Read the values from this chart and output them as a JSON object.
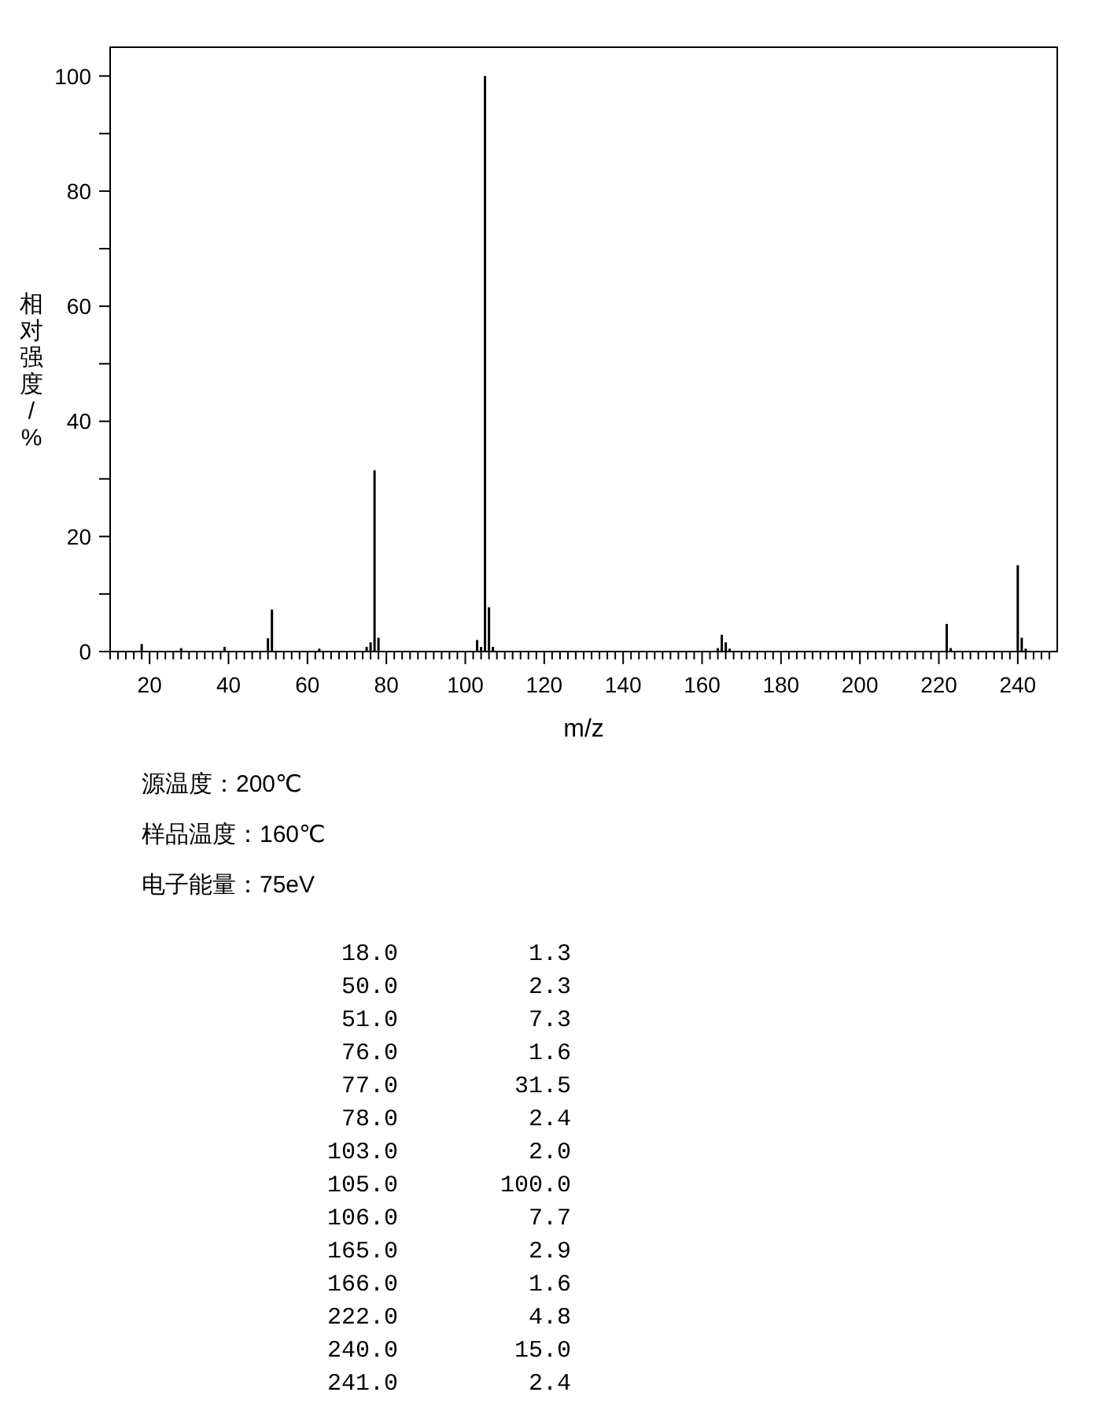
{
  "chart_data": {
    "type": "bar",
    "xlabel": "m/z",
    "ylabel": "相对强度/%",
    "xlim": [
      10,
      250
    ],
    "ylim": [
      0,
      105
    ],
    "xticks": [
      {
        "value": 10,
        "label": null
      },
      {
        "value": 12,
        "label": null
      },
      {
        "value": 14,
        "label": null
      },
      {
        "value": 16,
        "label": null
      },
      {
        "value": 18,
        "label": null
      },
      20,
      {
        "value": 22,
        "label": null
      },
      {
        "value": 24,
        "label": null
      },
      {
        "value": 26,
        "label": null
      },
      {
        "value": 28,
        "label": null
      },
      {
        "value": 30,
        "label": null
      },
      {
        "value": 32,
        "label": null
      },
      {
        "value": 34,
        "label": null
      },
      {
        "value": 36,
        "label": null
      },
      {
        "value": 38,
        "label": null
      },
      40,
      {
        "value": 42,
        "label": null
      },
      {
        "value": 44,
        "label": null
      },
      {
        "value": 46,
        "label": null
      },
      {
        "value": 48,
        "label": null
      },
      {
        "value": 50,
        "label": null
      },
      {
        "value": 52,
        "label": null
      },
      {
        "value": 54,
        "label": null
      },
      {
        "value": 56,
        "label": null
      },
      {
        "value": 58,
        "label": null
      },
      60,
      {
        "value": 62,
        "label": null
      },
      {
        "value": 64,
        "label": null
      },
      {
        "value": 66,
        "label": null
      },
      {
        "value": 68,
        "label": null
      },
      {
        "value": 70,
        "label": null
      },
      {
        "value": 72,
        "label": null
      },
      {
        "value": 74,
        "label": null
      },
      {
        "value": 76,
        "label": null
      },
      {
        "value": 78,
        "label": null
      },
      80,
      {
        "value": 82,
        "label": null
      },
      {
        "value": 84,
        "label": null
      },
      {
        "value": 86,
        "label": null
      },
      {
        "value": 88,
        "label": null
      },
      {
        "value": 90,
        "label": null
      },
      {
        "value": 92,
        "label": null
      },
      {
        "value": 94,
        "label": null
      },
      {
        "value": 96,
        "label": null
      },
      {
        "value": 98,
        "label": null
      },
      100,
      {
        "value": 102,
        "label": null
      },
      {
        "value": 104,
        "label": null
      },
      {
        "value": 106,
        "label": null
      },
      {
        "value": 108,
        "label": null
      },
      {
        "value": 110,
        "label": null
      },
      {
        "value": 112,
        "label": null
      },
      {
        "value": 114,
        "label": null
      },
      {
        "value": 116,
        "label": null
      },
      {
        "value": 118,
        "label": null
      },
      120,
      {
        "value": 122,
        "label": null
      },
      {
        "value": 124,
        "label": null
      },
      {
        "value": 126,
        "label": null
      },
      {
        "value": 128,
        "label": null
      },
      {
        "value": 130,
        "label": null
      },
      {
        "value": 132,
        "label": null
      },
      {
        "value": 134,
        "label": null
      },
      {
        "value": 136,
        "label": null
      },
      {
        "value": 138,
        "label": null
      },
      140,
      {
        "value": 142,
        "label": null
      },
      {
        "value": 144,
        "label": null
      },
      {
        "value": 146,
        "label": null
      },
      {
        "value": 148,
        "label": null
      },
      {
        "value": 150,
        "label": null
      },
      {
        "value": 152,
        "label": null
      },
      {
        "value": 154,
        "label": null
      },
      {
        "value": 156,
        "label": null
      },
      {
        "value": 158,
        "label": null
      },
      160,
      {
        "value": 162,
        "label": null
      },
      {
        "value": 164,
        "label": null
      },
      {
        "value": 166,
        "label": null
      },
      {
        "value": 168,
        "label": null
      },
      {
        "value": 170,
        "label": null
      },
      {
        "value": 172,
        "label": null
      },
      {
        "value": 174,
        "label": null
      },
      {
        "value": 176,
        "label": null
      },
      {
        "value": 178,
        "label": null
      },
      180,
      {
        "value": 182,
        "label": null
      },
      {
        "value": 184,
        "label": null
      },
      {
        "value": 186,
        "label": null
      },
      {
        "value": 188,
        "label": null
      },
      {
        "value": 190,
        "label": null
      },
      {
        "value": 192,
        "label": null
      },
      {
        "value": 194,
        "label": null
      },
      {
        "value": 196,
        "label": null
      },
      {
        "value": 198,
        "label": null
      },
      200,
      {
        "value": 202,
        "label": null
      },
      {
        "value": 204,
        "label": null
      },
      {
        "value": 206,
        "label": null
      },
      {
        "value": 208,
        "label": null
      },
      {
        "value": 210,
        "label": null
      },
      {
        "value": 212,
        "label": null
      },
      {
        "value": 214,
        "label": null
      },
      {
        "value": 216,
        "label": null
      },
      {
        "value": 218,
        "label": null
      },
      220,
      {
        "value": 222,
        "label": null
      },
      {
        "value": 224,
        "label": null
      },
      {
        "value": 226,
        "label": null
      },
      {
        "value": 228,
        "label": null
      },
      {
        "value": 230,
        "label": null
      },
      {
        "value": 232,
        "label": null
      },
      {
        "value": 234,
        "label": null
      },
      {
        "value": 236,
        "label": null
      },
      {
        "value": 238,
        "label": null
      },
      240,
      {
        "value": 242,
        "label": null
      },
      {
        "value": 244,
        "label": null
      },
      {
        "value": 246,
        "label": null
      },
      {
        "value": 248,
        "label": null
      }
    ],
    "yticks": [
      0,
      {
        "value": 10,
        "label": null
      },
      20,
      {
        "value": 30,
        "label": null
      },
      40,
      {
        "value": 50,
        "label": null
      },
      60,
      {
        "value": 70,
        "label": null
      },
      80,
      {
        "value": 90,
        "label": null
      },
      100
    ],
    "series": [
      {
        "color": "#000000",
        "x": [
          18,
          28,
          39,
          50,
          51,
          63,
          75,
          76,
          77,
          78,
          103,
          104,
          105,
          106,
          107,
          164,
          165,
          166,
          167,
          222,
          223,
          240,
          241,
          242
        ],
        "values": [
          1.3,
          0.6,
          0.8,
          2.3,
          7.3,
          0.5,
          0.8,
          1.6,
          31.5,
          2.4,
          2.0,
          0.8,
          100.0,
          7.7,
          0.8,
          0.6,
          2.9,
          1.6,
          0.5,
          4.8,
          0.6,
          15.0,
          2.4,
          0.5
        ]
      }
    ],
    "annotations": [
      "源温度：200℃",
      "样品温度：160℃",
      "电子能量：75eV",
      "18.0",
      "1.3",
      "50.0",
      "2.3",
      "51.0",
      "7.3",
      "76.0",
      "1.6",
      "77.0",
      "31.5",
      "78.0",
      "2.4",
      "103.0",
      "2.0",
      "105.0",
      "100.0",
      "106.0",
      "7.7",
      "165.0",
      "2.9",
      "166.0",
      "1.6",
      "222.0",
      "4.8",
      "240.0",
      "15.0",
      "241.0",
      "2.4"
    ]
  }
}
